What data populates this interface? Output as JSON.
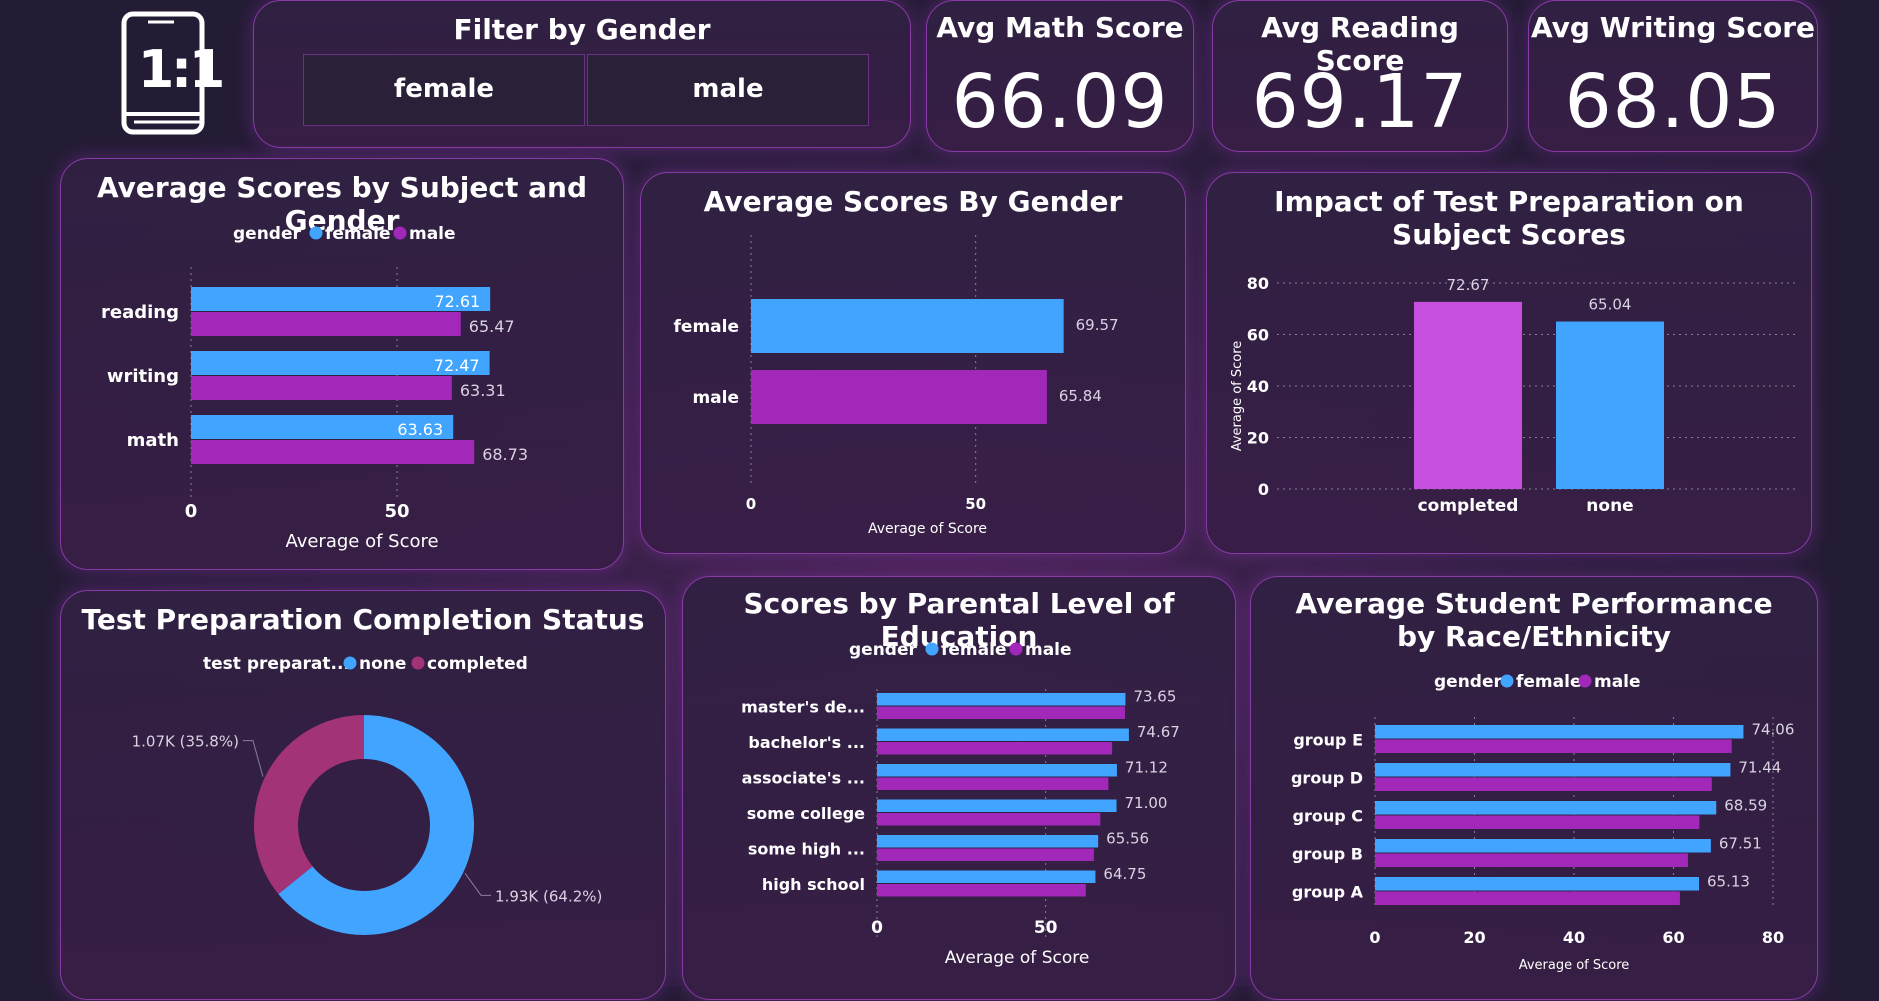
{
  "colors": {
    "female": "#41a5ff",
    "male": "#a128b9",
    "completed": "#c850e0",
    "none_bar": "#41a5ff",
    "donut_none": "#41a5ff",
    "donut_completed": "#a23377",
    "text_light": "#ffffff",
    "text_dim": "#d9d2e2",
    "grid": "#8a7f99"
  },
  "logo": {
    "icon": "phone-one-to-one-icon",
    "text": "1:1"
  },
  "filter": {
    "title": "Filter by Gender",
    "options": [
      "female",
      "male"
    ]
  },
  "kpis": {
    "math": {
      "title": "Avg Math Score",
      "value": "66.09"
    },
    "reading": {
      "title": "Avg Reading Score",
      "value": "69.17"
    },
    "writing": {
      "title": "Avg Writing Score",
      "value": "68.05"
    }
  },
  "legend_text": {
    "gender_title": "gender",
    "female": "female",
    "male": "male",
    "prep_title": "test preparat...",
    "none": "none",
    "completed": "completed"
  },
  "chart_data": [
    {
      "id": "subject_gender",
      "type": "bar",
      "orientation": "horizontal",
      "title": "Average Scores by Subject and Gender",
      "xlabel": "Average of Score",
      "ylabel": "",
      "categories": [
        "reading",
        "writing",
        "math"
      ],
      "series": [
        {
          "name": "female",
          "values": [
            72.61,
            72.47,
            63.63
          ],
          "labels": [
            "72.61",
            "72.47",
            "63.63"
          ]
        },
        {
          "name": "male",
          "values": [
            65.47,
            63.31,
            68.73
          ],
          "labels": [
            "65.47",
            "63.31",
            "68.73"
          ]
        }
      ],
      "xlim": [
        0,
        83
      ],
      "xticks": [
        "0",
        "50"
      ],
      "xtick_values": [
        0,
        50
      ],
      "legend": "top",
      "grid": true
    },
    {
      "id": "gender_avg",
      "type": "bar",
      "orientation": "horizontal",
      "title": "Average Scores By Gender",
      "xlabel": "Average of Score",
      "ylabel": "",
      "categories": [
        "female",
        "male"
      ],
      "values": [
        69.57,
        65.84
      ],
      "labels": [
        "69.57",
        "65.84"
      ],
      "xlim": [
        0,
        83
      ],
      "xticks": [
        "0",
        "50"
      ],
      "xtick_values": [
        0,
        50
      ],
      "grid": true
    },
    {
      "id": "test_prep",
      "type": "bar",
      "orientation": "vertical",
      "title": "Impact of Test Preparation on Subject Scores",
      "xlabel": "",
      "ylabel": "Average of Score",
      "categories": [
        "completed",
        "none"
      ],
      "values": [
        72.67,
        65.04
      ],
      "labels": [
        "72.67",
        "65.04"
      ],
      "ylim": [
        0,
        80
      ],
      "yticks": [
        "0",
        "20",
        "40",
        "60",
        "80"
      ],
      "ytick_values": [
        0,
        20,
        40,
        60,
        80
      ],
      "grid": true
    },
    {
      "id": "prep_status",
      "type": "pie",
      "title": "Test Preparation Completion Status",
      "legend": "top",
      "slices": [
        {
          "name": "none",
          "value": 64.2,
          "label": "1.93K (64.2%)"
        },
        {
          "name": "completed",
          "value": 35.8,
          "label": "1.07K (35.8%)"
        }
      ]
    },
    {
      "id": "parent_edu",
      "type": "bar",
      "orientation": "horizontal",
      "title": "Scores by Parental Level of Education",
      "xlabel": "Average of Score",
      "ylabel": "",
      "categories": [
        "master's de...",
        "bachelor's ...",
        "associate's ...",
        "some college",
        "some high ...",
        "high school"
      ],
      "series": [
        {
          "name": "female",
          "values": [
            73.65,
            74.67,
            71.12,
            71.0,
            65.56,
            64.75
          ],
          "labels": [
            "73.65",
            "74.67",
            "71.12",
            "71.00",
            "65.56",
            "64.75"
          ]
        },
        {
          "name": "male",
          "values": [
            73.5,
            69.7,
            68.6,
            66.2,
            64.3,
            61.9
          ]
        }
      ],
      "xlim": [
        0,
        83
      ],
      "xticks": [
        "0",
        "50"
      ],
      "xtick_values": [
        0,
        50
      ],
      "legend": "top",
      "grid": true
    },
    {
      "id": "race",
      "type": "bar",
      "orientation": "horizontal",
      "title": "Average Student Performance by Race/Ethnicity",
      "xlabel": "Average of Score",
      "ylabel": "",
      "categories": [
        "group E",
        "group D",
        "group C",
        "group B",
        "group A"
      ],
      "series": [
        {
          "name": "female",
          "values": [
            74.06,
            71.44,
            68.59,
            67.51,
            65.13
          ],
          "labels": [
            "74.06",
            "71.44",
            "68.59",
            "67.51",
            "65.13"
          ]
        },
        {
          "name": "male",
          "values": [
            71.7,
            67.7,
            65.2,
            62.9,
            61.3
          ]
        }
      ],
      "xlim": [
        0,
        80
      ],
      "xticks": [
        "0",
        "20",
        "40",
        "60",
        "80"
      ],
      "xtick_values": [
        0,
        20,
        40,
        60,
        80
      ],
      "legend": "top",
      "grid": true
    }
  ]
}
